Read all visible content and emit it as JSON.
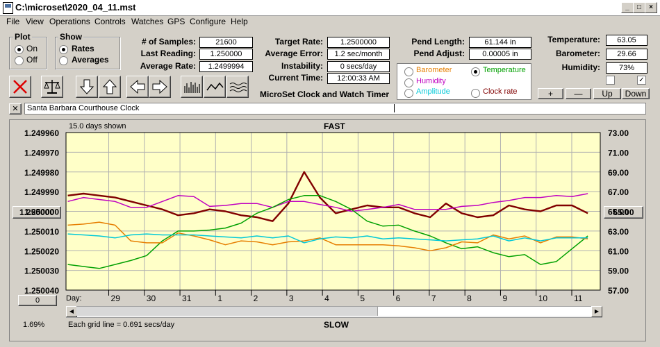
{
  "window": {
    "title": "C:\\microset\\2020_04_11.mst"
  },
  "menu": [
    "File",
    "View",
    "Operations",
    "Controls",
    "Watches",
    "GPS",
    "Configure",
    "Help"
  ],
  "plot_group": {
    "title": "Plot",
    "on": "On",
    "off": "Off",
    "selected": "On"
  },
  "show_group": {
    "title": "Show",
    "rates": "Rates",
    "averages": "Averages",
    "selected": "Rates"
  },
  "stats": {
    "samples_label": "# of Samples:",
    "samples": "21600",
    "last_label": "Last Reading:",
    "last": "1.250000",
    "avg_label": "Average Rate:",
    "avg": "1.2499994",
    "target_label": "Target Rate:",
    "target": "1.2500000",
    "avgerr_label": "Average Error:",
    "avgerr": "1.2 sec/month",
    "instab_label": "Instability:",
    "instab": "0 secs/day",
    "time_label": "Current Time:",
    "time": "12:00:33 AM",
    "app_title": "MicroSet Clock and Watch Timer",
    "pendlen_label": "Pend Length:",
    "pendlen": "61.144 in",
    "pendadj_label": "Pend Adjust:",
    "pendadj": "0.00005 in"
  },
  "sensors": {
    "temp_label": "Temperature:",
    "temp": "63.05",
    "baro_label": "Barometer:",
    "baro": "29.66",
    "hum_label": "Humidity:",
    "hum": "73%"
  },
  "overlay": {
    "barometer": "Barometer",
    "temperature": "Temperature",
    "humidity": "Humidity",
    "amplitude": "Amplitude",
    "clock_rate": "Clock rate",
    "selected": "Temperature",
    "colors": {
      "barometer": "#e67e00",
      "temperature": "#00a000",
      "humidity": "#c000c0",
      "amplitude": "#00c8d8",
      "clock_rate": "#800000"
    }
  },
  "adjust": {
    "plus": "+",
    "minus": "—",
    "up": "Up",
    "down": "Down"
  },
  "name_field": "Santa Barbara Courthouse Clock",
  "close_x": "✕",
  "plot": {
    "days_shown": "15.0 days shown",
    "fast": "FAST",
    "slow": "SLOW",
    "left_button": "1.250000",
    "right_button": "65.00",
    "zero_button": "0",
    "grid_note": "Each grid line = 0.691 secs/day",
    "percent": "1.69%",
    "day_label": "Day:"
  },
  "chart_data": {
    "type": "line",
    "left_axis": {
      "ticks": [
        "1.249960",
        "1.249970",
        "1.249980",
        "1.249990",
        "1.250000",
        "1.250010",
        "1.250020",
        "1.250030",
        "1.250040"
      ],
      "ylim": [
        1.24996,
        1.25004
      ],
      "inverted": true
    },
    "right_axis": {
      "ticks": [
        "73.00",
        "71.00",
        "69.00",
        "67.00",
        "65.00",
        "63.00",
        "61.00",
        "59.00",
        "57.00"
      ],
      "ylim": [
        57,
        73
      ]
    },
    "x_ticks": [
      "29",
      "30",
      "31",
      "1",
      "2",
      "3",
      "4",
      "5",
      "6",
      "7",
      "8",
      "9",
      "10",
      "11"
    ],
    "xlim": [
      0,
      15
    ],
    "series": [
      {
        "key": "clock_rate",
        "values": [
          1.249992,
          1.249991,
          1.249992,
          1.249993,
          1.249995,
          1.249997,
          1.249999,
          1.250002,
          1.250001,
          1.249999,
          1.25,
          1.250002,
          1.250003,
          1.250005,
          1.249996,
          1.24998,
          1.249993,
          1.250001,
          1.249999,
          1.249997,
          1.249998,
          1.249998,
          1.250001,
          1.250003,
          1.249996,
          1.250001,
          1.250003,
          1.250002,
          1.249997,
          1.249999,
          1.25,
          1.249997,
          1.249997,
          1.250001
        ]
      },
      {
        "key": "humidity",
        "values": [
          66.0,
          66.4,
          66.2,
          66.0,
          65.4,
          65.4,
          66.0,
          66.6,
          66.5,
          65.5,
          65.6,
          65.8,
          65.8,
          65.4,
          66.0,
          66.0,
          65.7,
          65.4,
          65.0,
          65.2,
          65.4,
          65.7,
          65.2,
          65.2,
          65.2,
          65.5,
          65.6,
          65.9,
          66.1,
          66.4,
          66.4,
          66.6,
          66.5,
          66.8
        ]
      },
      {
        "key": "temperature",
        "values": [
          59.6,
          59.4,
          59.2,
          59.6,
          60.0,
          60.5,
          62.0,
          63.0,
          63.0,
          63.1,
          63.3,
          63.8,
          64.8,
          65.4,
          66.2,
          66.6,
          66.6,
          66.0,
          65.2,
          64.0,
          63.5,
          63.6,
          63.0,
          62.5,
          61.8,
          61.2,
          61.4,
          60.8,
          60.4,
          60.6,
          59.6,
          59.9,
          61.2,
          62.5
        ]
      },
      {
        "key": "barometer",
        "values": [
          63.6,
          63.7,
          63.9,
          63.6,
          62.0,
          61.8,
          61.8,
          62.8,
          62.5,
          62.1,
          61.6,
          62.0,
          61.9,
          61.6,
          61.9,
          62.0,
          62.3,
          61.6,
          61.6,
          61.6,
          61.6,
          61.5,
          61.3,
          61.0,
          61.3,
          61.9,
          61.8,
          62.6,
          62.2,
          62.5,
          61.8,
          62.4,
          62.4,
          62.2
        ]
      },
      {
        "key": "amplitude",
        "values": [
          62.7,
          62.6,
          62.5,
          62.3,
          62.6,
          62.7,
          62.6,
          62.6,
          62.6,
          62.5,
          62.4,
          62.3,
          62.5,
          62.3,
          62.5,
          61.8,
          62.2,
          62.4,
          62.3,
          62.5,
          62.2,
          62.3,
          62.2,
          62.1,
          62.0,
          62.1,
          62.2,
          62.5,
          62.0,
          62.3,
          62.0,
          62.3,
          62.3,
          62.3
        ]
      }
    ]
  }
}
